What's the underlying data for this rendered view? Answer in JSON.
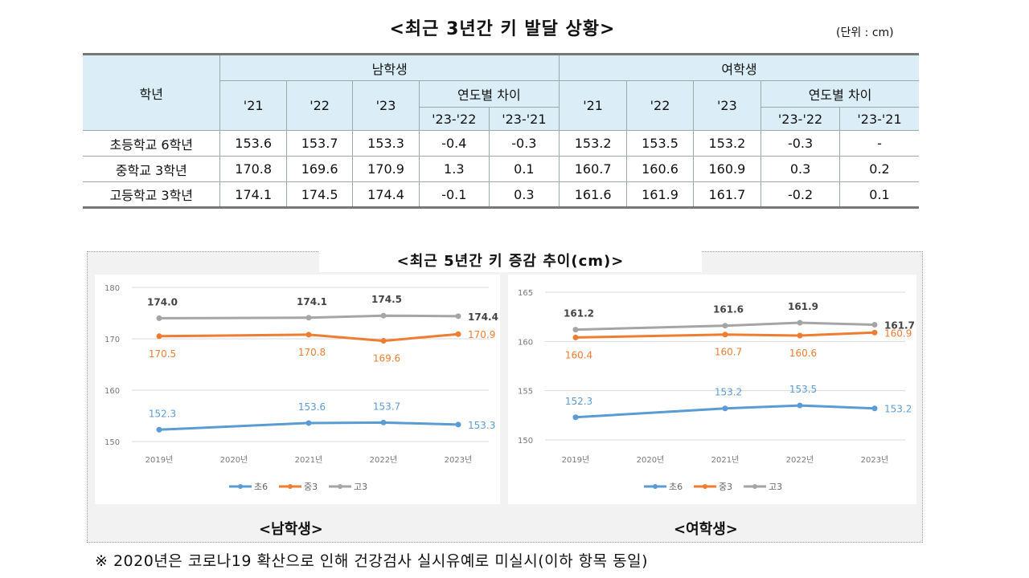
{
  "title": "<최근 3년간 키 발달 상황>",
  "unit": "(단위 : cm)",
  "table": {
    "grade_header": "학년",
    "male_header": "남학생",
    "female_header": "여학생",
    "year_headers": [
      "'21",
      "'22",
      "'23"
    ],
    "diff_header": "연도별 차이",
    "diff_subheaders": [
      "'23-'22",
      "'23-'21"
    ],
    "rows": [
      {
        "grade": "초등학교 6학년",
        "male": [
          "153.6",
          "153.7",
          "153.3",
          "-0.4",
          "-0.3"
        ],
        "female": [
          "153.2",
          "153.5",
          "153.2",
          "-0.3",
          "-"
        ]
      },
      {
        "grade": "중학교 3학년",
        "male": [
          "170.8",
          "169.6",
          "170.9",
          "1.3",
          "0.1"
        ],
        "female": [
          "160.7",
          "160.6",
          "160.9",
          "0.3",
          "0.2"
        ]
      },
      {
        "grade": "고등학교 3학년",
        "male": [
          "174.1",
          "174.5",
          "174.4",
          "-0.1",
          "0.3"
        ],
        "female": [
          "161.6",
          "161.9",
          "161.7",
          "-0.2",
          "0.1"
        ]
      }
    ]
  },
  "charts_title": "<최근 5년간 키 증감 추이(cm)>",
  "chart_data": [
    {
      "type": "line",
      "caption": "<남학생>",
      "categories": [
        "2019년",
        "2020년",
        "2021년",
        "2022년",
        "2023년"
      ],
      "ylim": [
        150,
        180
      ],
      "yticks": [
        150,
        160,
        170,
        180
      ],
      "grid": true,
      "legend": "bottom",
      "series": [
        {
          "name": "초6",
          "color": "#5b9bd5",
          "values": [
            152.3,
            null,
            153.6,
            153.7,
            153.3
          ]
        },
        {
          "name": "중3",
          "color": "#ed7d31",
          "values": [
            170.5,
            null,
            170.8,
            169.6,
            170.9
          ]
        },
        {
          "name": "고3",
          "color": "#a5a5a5",
          "values": [
            174.0,
            null,
            174.1,
            174.5,
            174.4
          ]
        }
      ]
    },
    {
      "type": "line",
      "caption": "<여학생>",
      "categories": [
        "2019년",
        "2020년",
        "2021년",
        "2022년",
        "2023년"
      ],
      "ylim": [
        150,
        165
      ],
      "yticks": [
        150,
        155,
        160,
        165
      ],
      "grid": true,
      "legend": "bottom",
      "series": [
        {
          "name": "초6",
          "color": "#5b9bd5",
          "values": [
            152.3,
            null,
            153.2,
            153.5,
            153.2
          ]
        },
        {
          "name": "중3",
          "color": "#ed7d31",
          "values": [
            160.4,
            null,
            160.7,
            160.6,
            160.9
          ]
        },
        {
          "name": "고3",
          "color": "#a5a5a5",
          "values": [
            161.2,
            null,
            161.6,
            161.9,
            161.7
          ]
        }
      ]
    }
  ],
  "footnote": "※ 2020년은 코로나19 확산으로 인해 건강검사 실시유예로 미실시(이하 항목 동일)"
}
